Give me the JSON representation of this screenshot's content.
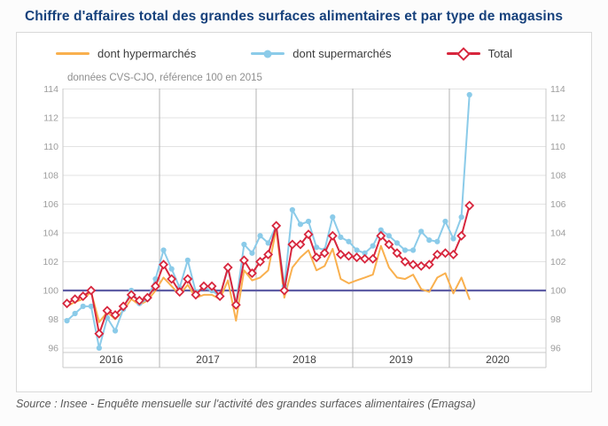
{
  "title": "Chiffre d'affaires total des grandes surfaces alimentaires et par type de magasins",
  "panel": {
    "legend": [
      {
        "label": "dont hypermarchés",
        "color": "#f9b04e",
        "marker": "none"
      },
      {
        "label": "dont supermarchés",
        "color": "#8bcbe9",
        "marker": "circle"
      },
      {
        "label": "Total",
        "color": "#d7263d",
        "marker": "diamond"
      }
    ],
    "subtitle": "données CVS-CJO, référence 100 en 2015"
  },
  "chart_data": {
    "type": "line",
    "title": "Chiffre d'affaires total des grandes surfaces alimentaires et par type de magasins",
    "note": "données CVS-CJO, référence 100 en 2015",
    "years": [
      "2016",
      "2017",
      "2018",
      "2019",
      "2020"
    ],
    "y_ticks": [
      96,
      98,
      100,
      102,
      104,
      106,
      108,
      110,
      112,
      114
    ],
    "ylim": [
      95.3,
      114.3
    ],
    "baseline_value": 100,
    "baseline_color": "#5e5da5",
    "grid": true,
    "legend_position": "top",
    "months": [
      "2016-01",
      "2016-02",
      "2016-03",
      "2016-04",
      "2016-05",
      "2016-06",
      "2016-07",
      "2016-08",
      "2016-09",
      "2016-10",
      "2016-11",
      "2016-12",
      "2017-01",
      "2017-02",
      "2017-03",
      "2017-04",
      "2017-05",
      "2017-06",
      "2017-07",
      "2017-08",
      "2017-09",
      "2017-10",
      "2017-11",
      "2017-12",
      "2018-01",
      "2018-02",
      "2018-03",
      "2018-04",
      "2018-05",
      "2018-06",
      "2018-07",
      "2018-08",
      "2018-09",
      "2018-10",
      "2018-11",
      "2018-12",
      "2019-01",
      "2019-02",
      "2019-03",
      "2019-04",
      "2019-05",
      "2019-06",
      "2019-07",
      "2019-08",
      "2019-09",
      "2019-10",
      "2019-11",
      "2019-12",
      "2020-01",
      "2020-02",
      "2020-03"
    ],
    "series": [
      {
        "name": "dont hypermarchés",
        "color": "#f9b04e",
        "marker": "none",
        "values": [
          98.9,
          99.2,
          99.4,
          99.9,
          97.8,
          98.5,
          98.0,
          98.6,
          99.4,
          99.0,
          99.3,
          100.0,
          100.9,
          100.3,
          99.7,
          100.4,
          99.5,
          99.7,
          99.7,
          99.4,
          100.7,
          97.9,
          101.4,
          100.7,
          100.9,
          101.4,
          104.3,
          99.5,
          101.6,
          102.3,
          102.8,
          101.4,
          101.7,
          102.9,
          100.8,
          100.5,
          100.7,
          100.9,
          101.1,
          103.1,
          101.6,
          100.9,
          100.8,
          101.1,
          100.1,
          99.9,
          100.9,
          101.2,
          99.8,
          100.9,
          99.4
        ]
      },
      {
        "name": "dont supermarchés",
        "color": "#8bcbe9",
        "marker": "circle",
        "values": [
          97.9,
          98.4,
          98.9,
          98.9,
          96.0,
          98.1,
          97.2,
          98.7,
          100.0,
          99.1,
          99.4,
          100.8,
          102.8,
          101.5,
          100.2,
          102.1,
          99.9,
          100.2,
          100.0,
          99.6,
          101.5,
          99.1,
          103.2,
          102.6,
          103.8,
          103.3,
          104.5,
          100.3,
          105.6,
          104.6,
          104.8,
          103.0,
          102.8,
          105.1,
          103.7,
          103.4,
          102.8,
          102.6,
          103.1,
          104.2,
          103.8,
          103.3,
          102.8,
          102.8,
          104.1,
          103.5,
          103.4,
          104.8,
          103.6,
          105.1,
          113.6
        ]
      },
      {
        "name": "Total",
        "color": "#d7263d",
        "marker": "diamond",
        "values": [
          99.1,
          99.4,
          99.6,
          100.0,
          97.0,
          98.6,
          98.3,
          98.9,
          99.7,
          99.3,
          99.5,
          100.3,
          101.8,
          100.8,
          99.9,
          100.8,
          99.7,
          100.3,
          100.3,
          99.6,
          101.6,
          99.0,
          102.1,
          101.2,
          102.0,
          102.5,
          104.5,
          100.0,
          103.2,
          103.2,
          103.9,
          102.3,
          102.6,
          103.8,
          102.5,
          102.4,
          102.3,
          102.2,
          102.2,
          103.8,
          103.2,
          102.6,
          102.0,
          101.8,
          101.7,
          101.8,
          102.5,
          102.6,
          102.5,
          103.8,
          105.9
        ]
      }
    ]
  },
  "source": "Source : Insee - Enquête mensuelle sur l'activité des grandes surfaces alimentaires (Emagsa)"
}
